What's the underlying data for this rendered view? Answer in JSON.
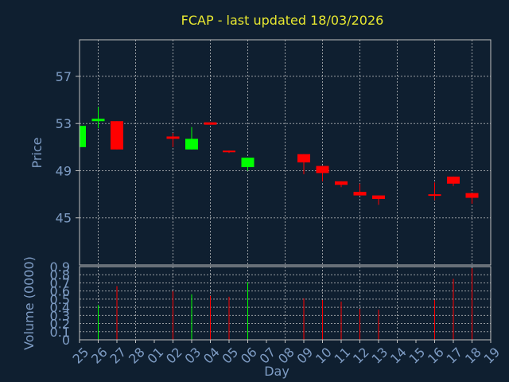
{
  "chart_data": [
    {
      "type": "candlestick",
      "title": "FCAP - last updated 18/03/2026",
      "ylabel": "Price",
      "categories": [
        "25",
        "26",
        "27",
        "28",
        "01",
        "02",
        "03",
        "04",
        "05",
        "06",
        "07",
        "08",
        "09",
        "10",
        "11",
        "12",
        "13",
        "14",
        "15",
        "16",
        "17",
        "18",
        "19"
      ],
      "open": [
        51.0,
        53.2,
        53.2,
        null,
        null,
        51.9,
        50.8,
        53.1,
        50.7,
        49.3,
        null,
        null,
        50.4,
        49.4,
        48.1,
        47.2,
        46.9,
        null,
        null,
        47.0,
        48.5,
        47.1,
        null
      ],
      "high": [
        52.8,
        54.4,
        53.2,
        null,
        null,
        52.2,
        52.7,
        53.1,
        50.7,
        50.1,
        null,
        null,
        50.4,
        49.4,
        48.1,
        47.9,
        46.9,
        null,
        null,
        48.0,
        48.5,
        47.1,
        null
      ],
      "low": [
        51.0,
        52.6,
        50.8,
        null,
        null,
        51.0,
        50.8,
        52.9,
        50.5,
        49.0,
        null,
        null,
        48.7,
        48.1,
        47.6,
        46.9,
        46.1,
        null,
        null,
        46.5,
        47.7,
        46.2,
        null
      ],
      "close": [
        52.8,
        53.4,
        50.8,
        null,
        null,
        51.7,
        51.7,
        52.9,
        50.6,
        50.1,
        null,
        null,
        49.7,
        48.8,
        47.8,
        46.9,
        46.6,
        null,
        null,
        46.9,
        47.9,
        46.7,
        null
      ],
      "up_color": "#00ff00",
      "down_color": "#ff0000",
      "ylim": [
        41,
        60.1
      ],
      "yticks": [
        45,
        49,
        53,
        57
      ],
      "grid": true
    },
    {
      "type": "bar",
      "ylabel": "Volume (0000)",
      "xlabel": "Day",
      "values": [
        null,
        0.43,
        0.66,
        null,
        null,
        0.6,
        0.56,
        0.54,
        0.53,
        0.71,
        null,
        null,
        0.51,
        0.49,
        0.47,
        0.38,
        0.37,
        null,
        null,
        0.49,
        0.75,
        0.88,
        null
      ],
      "ylim": [
        0,
        0.9
      ],
      "yticks": [
        0,
        0.1,
        0.2,
        0.3,
        0.4,
        0.5,
        0.6,
        0.7,
        0.8,
        0.9
      ],
      "grid": true
    }
  ]
}
